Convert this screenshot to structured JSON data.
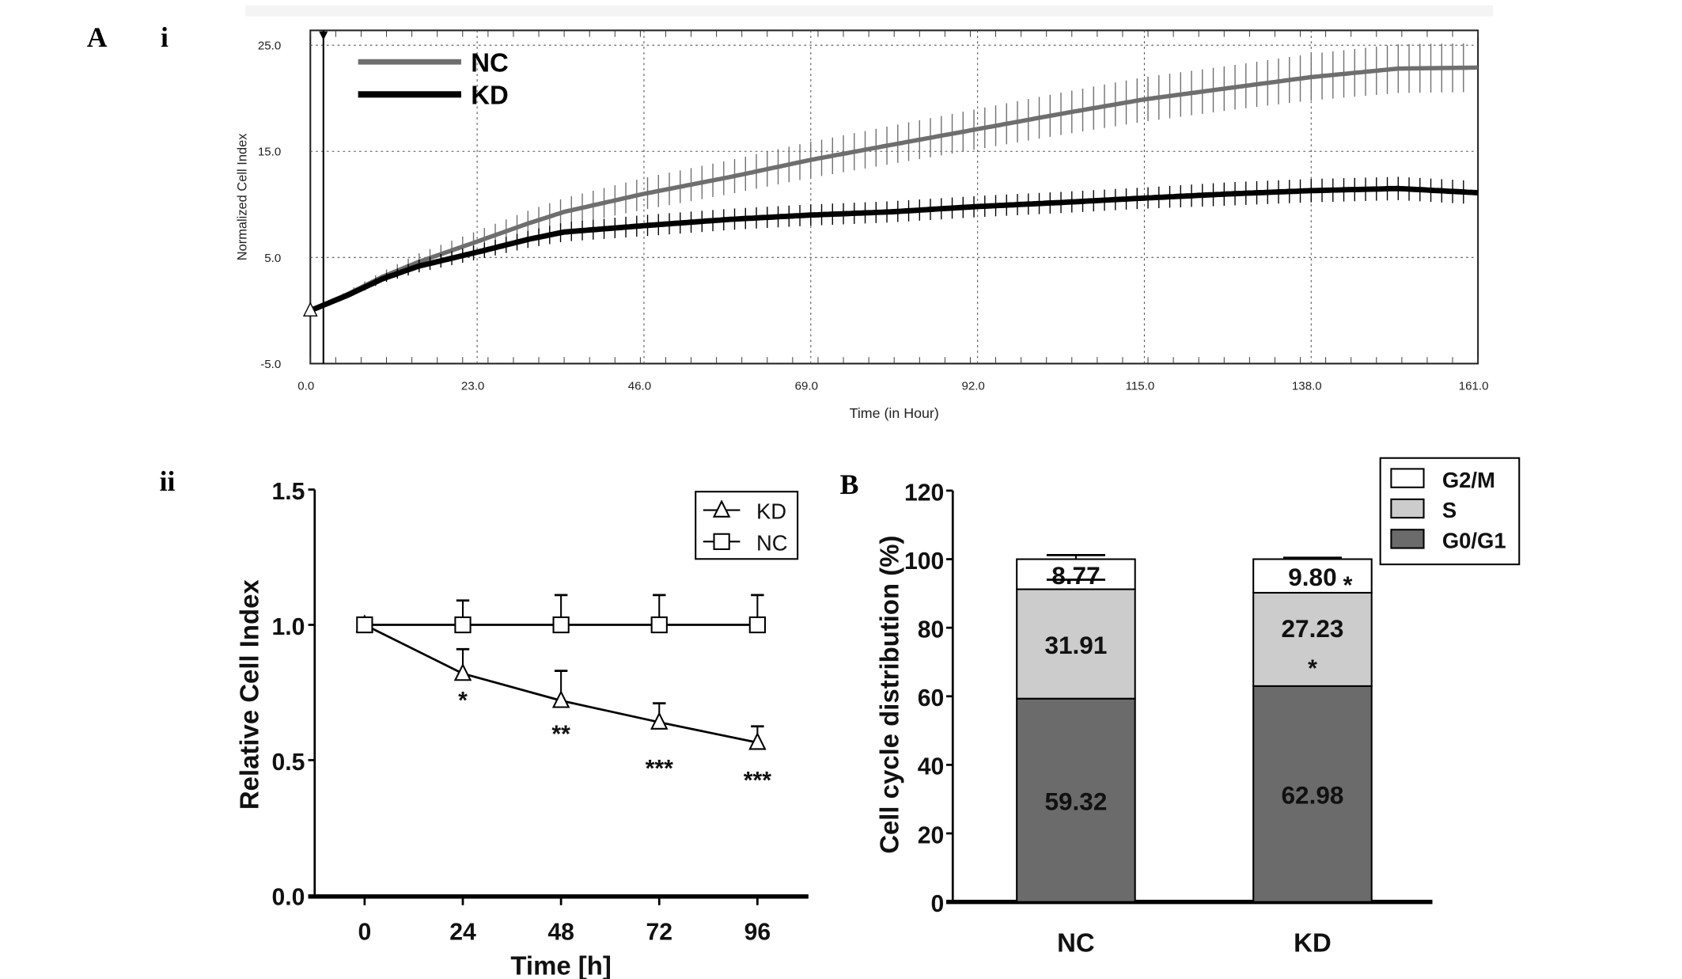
{
  "panels": {
    "a": "A",
    "a_i": "i",
    "a_ii": "ii",
    "b": "B"
  },
  "chart_data": [
    {
      "id": "real-time-cell-index",
      "type": "line",
      "title": "",
      "xlabel": "Time (in Hour)",
      "ylabel": "Normalized Cell Index",
      "xlim": [
        0,
        161
      ],
      "ylim": [
        -5,
        26.4
      ],
      "xticks": [
        "0.0",
        "23.0",
        "46.0",
        "69.0",
        "92.0",
        "115.0",
        "138.0",
        "161.0"
      ],
      "xtick_values": [
        0,
        23,
        46,
        69,
        92,
        115,
        138,
        161
      ],
      "yticks": [
        "-5.0",
        "5.0",
        "15.0",
        "25.0"
      ],
      "ytick_values": [
        -5,
        5,
        15,
        25
      ],
      "grid": true,
      "legend": "top-left",
      "marker_time": 1.8,
      "x": [
        0,
        5,
        10,
        15,
        23,
        30,
        35,
        46,
        58,
        69,
        80,
        92,
        104,
        115,
        127,
        138,
        150,
        161
      ],
      "series": [
        {
          "name": "NC",
          "color": "#6e6e6e",
          "values": [
            0,
            1.5,
            3.2,
            4.6,
            6.5,
            8.2,
            9.3,
            11.0,
            12.6,
            14.2,
            15.6,
            17.1,
            18.6,
            19.9,
            21.0,
            22.0,
            22.8,
            22.9
          ],
          "sd": [
            0,
            0.3,
            0.5,
            0.8,
            1.0,
            1.2,
            1.3,
            1.5,
            1.6,
            1.7,
            1.8,
            1.9,
            2.0,
            2.1,
            2.1,
            2.2,
            2.3,
            2.3
          ]
        },
        {
          "name": "KD",
          "color": "#000000",
          "values": [
            0,
            1.4,
            3.0,
            4.2,
            5.5,
            6.7,
            7.4,
            8.0,
            8.6,
            9.0,
            9.3,
            9.8,
            10.2,
            10.6,
            11.0,
            11.3,
            11.5,
            11.1
          ],
          "sd": [
            0,
            0.2,
            0.4,
            0.6,
            0.7,
            0.8,
            0.9,
            1.0,
            1.0,
            1.0,
            1.0,
            1.0,
            1.0,
            1.0,
            1.1,
            1.1,
            1.1,
            1.1
          ]
        }
      ]
    },
    {
      "id": "relative-cell-index",
      "type": "line",
      "title": "",
      "xlabel": "Time [h]",
      "ylabel": "Relative Cell Index",
      "xlim": [
        0,
        96
      ],
      "ylim": [
        0,
        1.5
      ],
      "xticks": [
        "0",
        "24",
        "48",
        "72",
        "96"
      ],
      "xtick_values": [
        0,
        24,
        48,
        72,
        96
      ],
      "yticks": [
        "0.0",
        "0.5",
        "1.0",
        "1.5"
      ],
      "ytick_values": [
        0,
        0.5,
        1.0,
        1.5
      ],
      "grid": false,
      "legend": "top-right",
      "x": [
        0,
        24,
        48,
        72,
        96
      ],
      "series": [
        {
          "name": "KD",
          "marker": "triangle",
          "values": [
            1.0,
            0.82,
            0.72,
            0.64,
            0.565
          ],
          "err": [
            0,
            0.09,
            0.11,
            0.07,
            0.06
          ],
          "significance": [
            "",
            "*",
            "**",
            "***",
            "***"
          ]
        },
        {
          "name": "NC",
          "marker": "square",
          "values": [
            1.0,
            1.0,
            1.0,
            1.0,
            1.0
          ],
          "err": [
            0,
            0.09,
            0.11,
            0.11,
            0.11
          ]
        }
      ]
    },
    {
      "id": "cell-cycle-distribution",
      "type": "bar",
      "stacked": true,
      "title": "",
      "xlabel": "",
      "ylabel": "Cell cycle distribution (%)",
      "ylim": [
        0,
        120
      ],
      "yticks": [
        "0",
        "20",
        "40",
        "60",
        "80",
        "100",
        "120"
      ],
      "ytick_values": [
        0,
        20,
        40,
        60,
        80,
        100,
        120
      ],
      "legend": "top-right",
      "categories": [
        "NC",
        "KD"
      ],
      "series": [
        {
          "name": "G0/G1",
          "color": "#6b6b6b",
          "values": [
            59.32,
            62.98
          ],
          "labels": [
            "59.32",
            "62.98"
          ],
          "err": [
            2.8,
            0.6
          ]
        },
        {
          "name": "S",
          "color": "#cccccc",
          "values": [
            31.91,
            27.23
          ],
          "labels": [
            "31.91",
            "27.23"
          ],
          "err": [
            0,
            0
          ],
          "significance": [
            "",
            "*"
          ]
        },
        {
          "name": "G2/M",
          "color": "#ffffff",
          "values": [
            8.77,
            9.8
          ],
          "labels": [
            "8.77",
            "9.80"
          ],
          "err": [
            1.2,
            0.4
          ],
          "significance": [
            "",
            "*"
          ]
        }
      ],
      "legend_order": [
        "G2/M",
        "S",
        "G0/G1"
      ]
    }
  ]
}
